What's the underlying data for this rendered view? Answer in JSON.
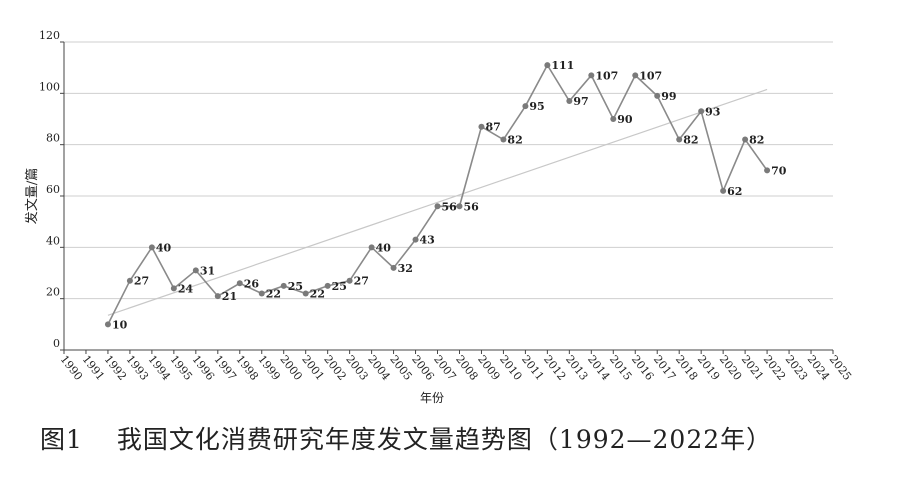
{
  "chart_data": {
    "type": "line",
    "ylabel": "发文量/篇",
    "xlabel": "年份",
    "xticks": [
      "1990",
      "1991",
      "1992",
      "1993",
      "1994",
      "1995",
      "1996",
      "1997",
      "1998",
      "1999",
      "2000",
      "2001",
      "2002",
      "2003",
      "2004",
      "2005",
      "2006",
      "2007",
      "2008",
      "2009",
      "2010",
      "2011",
      "2012",
      "2013",
      "2014",
      "2015",
      "2016",
      "2017",
      "2018",
      "2019",
      "2020",
      "2021",
      "2022",
      "2023",
      "2024",
      "2025"
    ],
    "yticks": [
      "0",
      "20",
      "40",
      "60",
      "80",
      "100",
      "120"
    ],
    "ylim": [
      0,
      120
    ],
    "xlim": [
      1990,
      2025
    ],
    "grid": "horizontal",
    "colors": {
      "line": "#8a8a8a",
      "point": "#7a7a7a",
      "trend": "#c8c8c8",
      "grid": "#cfcfcf"
    },
    "x": [
      1992,
      1993,
      1994,
      1995,
      1996,
      1997,
      1998,
      1999,
      2000,
      2001,
      2002,
      2003,
      2004,
      2005,
      2006,
      2007,
      2008,
      2009,
      2010,
      2011,
      2012,
      2013,
      2014,
      2015,
      2016,
      2017,
      2018,
      2019,
      2020,
      2021,
      2022
    ],
    "values": [
      10,
      27,
      40,
      24,
      31,
      21,
      26,
      22,
      25,
      22,
      25,
      27,
      40,
      32,
      43,
      56,
      56,
      87,
      82,
      95,
      111,
      97,
      107,
      90,
      107,
      99,
      82,
      93,
      62,
      82,
      70
    ],
    "data_labels": [
      "10",
      "27",
      "40",
      "24",
      "31",
      "21",
      "26",
      "22",
      "25",
      "22",
      "25",
      "27",
      "40",
      "32",
      "43",
      "56",
      "56",
      "87",
      "82",
      "95",
      "111",
      "97",
      "107",
      "90",
      "107",
      "99",
      "82",
      "93",
      "62",
      "82",
      "70"
    ],
    "trendline": {
      "x": [
        1992,
        2022
      ],
      "y": [
        13.5,
        101.5
      ]
    }
  },
  "caption": {
    "number": "图1",
    "text": "我国文化消费研究年度发文量趋势图（1992—2022年）"
  }
}
